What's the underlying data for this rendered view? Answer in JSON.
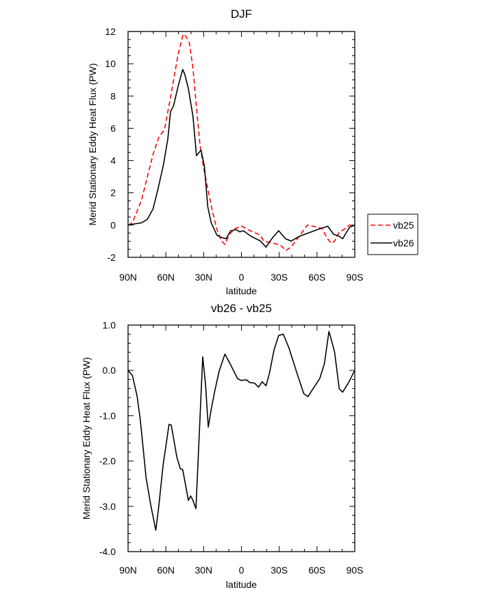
{
  "chart_data": [
    {
      "type": "line",
      "title": "DJF",
      "xlabel": "latitude",
      "ylabel": "Merid Stationary Eddy Heat Flux (PW)",
      "xlim": [
        90,
        -90
      ],
      "ylim": [
        -2,
        12
      ],
      "x_ticks": [
        90,
        60,
        30,
        0,
        -30,
        -60,
        -90
      ],
      "x_tick_labels": [
        "90N",
        "60N",
        "30N",
        "0",
        "30S",
        "60S",
        "90S"
      ],
      "y_ticks": [
        -2,
        0,
        2,
        4,
        6,
        8,
        10,
        12
      ],
      "y_tick_labels": [
        "-2",
        "0",
        "2",
        "4",
        "6",
        "8",
        "10",
        "12"
      ],
      "legend": {
        "placement": "outside-right",
        "entries": [
          "vb25",
          "vb26"
        ]
      },
      "series": [
        {
          "name": "vb25",
          "color": "#ff0000",
          "dash": "dashed",
          "x": [
            90,
            86.6,
            79.3,
            75.7,
            70.2,
            65.7,
            61.1,
            55.7,
            50.3,
            46.3,
            43.9,
            41.2,
            38.5,
            35.7,
            33.0,
            30.3,
            26.7,
            23.0,
            19.4,
            15.8,
            13.1,
            9.4,
            4.9,
            -0.5,
            -5.1,
            -15.1,
            -17.8,
            -25.9,
            -31.4,
            -35.4,
            -39.6,
            -45.9,
            -52.3,
            -56.8,
            -64.1,
            -67.7,
            -71.3,
            -74.0,
            -77.7,
            -81.3,
            -85.8,
            -90
          ],
          "y": [
            0,
            0.14,
            1.55,
            2.68,
            4.37,
            5.42,
            5.92,
            8.17,
            10.56,
            11.83,
            11.69,
            11.27,
            9.72,
            7.32,
            5.07,
            3.66,
            2.25,
            0.85,
            -0.28,
            -0.99,
            -1.2,
            -0.56,
            -0.21,
            -0.07,
            -0.28,
            -0.63,
            -0.99,
            -1.13,
            -1.27,
            -1.58,
            -1.34,
            -0.7,
            0,
            -0.07,
            -0.21,
            -0.77,
            -1.13,
            -0.99,
            -0.42,
            -0.28,
            0,
            -0.07
          ]
        },
        {
          "name": "vb26",
          "color": "#000000",
          "dash": "solid",
          "x": [
            90,
            82.9,
            79.3,
            74.8,
            70.2,
            66.6,
            62.1,
            58.4,
            56.3,
            53.9,
            50.3,
            46.6,
            44.8,
            42.1,
            38.5,
            35.7,
            32.1,
            29.4,
            26.7,
            24.0,
            19.4,
            15.8,
            12.2,
            8.5,
            4.0,
            1.3,
            -1.5,
            -7.8,
            -15.1,
            -19.6,
            -24.1,
            -29.6,
            -35.0,
            -39.6,
            -45.9,
            -53.2,
            -60.4,
            -68.6,
            -73.1,
            -77.7,
            -80.4,
            -85.8,
            -90
          ],
          "y": [
            0,
            0.1,
            0.14,
            0.35,
            0.99,
            2.11,
            3.66,
            5.35,
            7.04,
            7.39,
            8.59,
            9.65,
            9.3,
            8.45,
            6.76,
            4.3,
            4.65,
            3.66,
            1.13,
            0.14,
            -0.63,
            -0.77,
            -0.85,
            -0.35,
            -0.28,
            -0.42,
            -0.35,
            -0.7,
            -0.99,
            -1.37,
            -0.85,
            -0.35,
            -0.85,
            -0.99,
            -0.7,
            -0.49,
            -0.28,
            -0.07,
            -0.56,
            -0.7,
            -0.85,
            -0.14,
            0
          ]
        }
      ]
    },
    {
      "type": "line",
      "title": "vb26 - vb25",
      "xlabel": "latitude",
      "ylabel": "Merid Stationary Eddy Heat Flux (PW)",
      "xlim": [
        90,
        -90
      ],
      "ylim": [
        -4,
        1
      ],
      "x_ticks": [
        90,
        60,
        30,
        0,
        -30,
        -60,
        -90
      ],
      "x_tick_labels": [
        "90N",
        "60N",
        "30N",
        "0",
        "30S",
        "60S",
        "90S"
      ],
      "y_ticks": [
        -4,
        -3,
        -2,
        -1,
        0,
        1
      ],
      "y_tick_labels": [
        "-4.0",
        "-3.0",
        "-2.0",
        "-1.0",
        "0.0",
        "1.0"
      ],
      "series": [
        {
          "name": "vb26 - vb25",
          "color": "#000000",
          "dash": "solid",
          "x": [
            90,
            86.6,
            82.9,
            80.2,
            75.7,
            72.0,
            68.0,
            65.7,
            62.1,
            59.4,
            57.5,
            55.7,
            51.2,
            48.5,
            46.6,
            42.1,
            40.3,
            38.5,
            36.1,
            33.9,
            30.7,
            28.5,
            26.3,
            24.0,
            21.2,
            17.6,
            13.1,
            8.5,
            3.1,
            0.4,
            -4.1,
            -6.8,
            -10.4,
            -13.6,
            -16.5,
            -19.6,
            -22.3,
            -25.9,
            -29.6,
            -33.2,
            -37.7,
            -44.1,
            -49.5,
            -52.8,
            -56.8,
            -62.2,
            -65.9,
            -69.5,
            -71.7,
            -74.0,
            -77.7,
            -80.4,
            -84.9,
            -90
          ],
          "y": [
            0,
            -0.11,
            -0.56,
            -1.11,
            -2.37,
            -2.97,
            -3.53,
            -3.02,
            -2.07,
            -1.56,
            -1.19,
            -1.21,
            -1.92,
            -2.17,
            -2.19,
            -2.87,
            -2.77,
            -2.87,
            -3.05,
            -1.67,
            0.3,
            -0.31,
            -1.25,
            -0.86,
            -0.46,
            -0.01,
            0.36,
            0.12,
            -0.18,
            -0.22,
            -0.21,
            -0.27,
            -0.28,
            -0.37,
            -0.25,
            -0.34,
            -0.06,
            0.45,
            0.77,
            0.8,
            0.5,
            -0.06,
            -0.51,
            -0.58,
            -0.41,
            -0.18,
            0.15,
            0.86,
            0.65,
            0.4,
            -0.41,
            -0.48,
            -0.28,
            0
          ]
        }
      ]
    }
  ]
}
